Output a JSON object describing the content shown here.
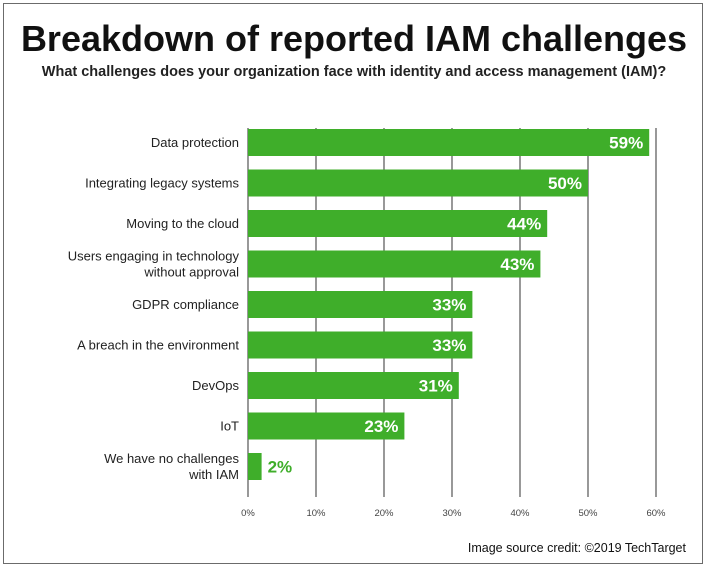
{
  "title": "Breakdown of reported IAM challenges",
  "subtitle": "What challenges does your organization face with identity and access management (IAM)?",
  "credit": "Image source credit: ©2019 TechTarget",
  "colors": {
    "bar": "#3fae2a",
    "grid": "#555555",
    "value_inside": "#ffffff",
    "value_outside": "#3fae2a"
  },
  "chart_data": {
    "type": "bar",
    "orientation": "horizontal",
    "title": "Breakdown of reported IAM challenges",
    "subtitle": "What challenges does your organization face with identity and access management (IAM)?",
    "categories": [
      [
        "Data protection"
      ],
      [
        "Integrating legacy systems"
      ],
      [
        "Moving to the cloud"
      ],
      [
        "Users engaging in technology",
        "without approval"
      ],
      [
        "GDPR compliance"
      ],
      [
        "A breach in the environment"
      ],
      [
        "DevOps"
      ],
      [
        "IoT"
      ],
      [
        "We have no challenges",
        "with IAM"
      ]
    ],
    "values": [
      59,
      50,
      44,
      43,
      33,
      33,
      31,
      23,
      2
    ],
    "value_labels": [
      "59%",
      "50%",
      "44%",
      "43%",
      "33%",
      "33%",
      "31%",
      "23%",
      "2%"
    ],
    "xlim": [
      0,
      60
    ],
    "x_ticks": [
      0,
      10,
      20,
      30,
      40,
      50,
      60
    ],
    "x_tick_labels": [
      "0%",
      "10%",
      "20%",
      "30%",
      "40%",
      "50%",
      "60%"
    ],
    "grid": true,
    "legend": "none"
  }
}
